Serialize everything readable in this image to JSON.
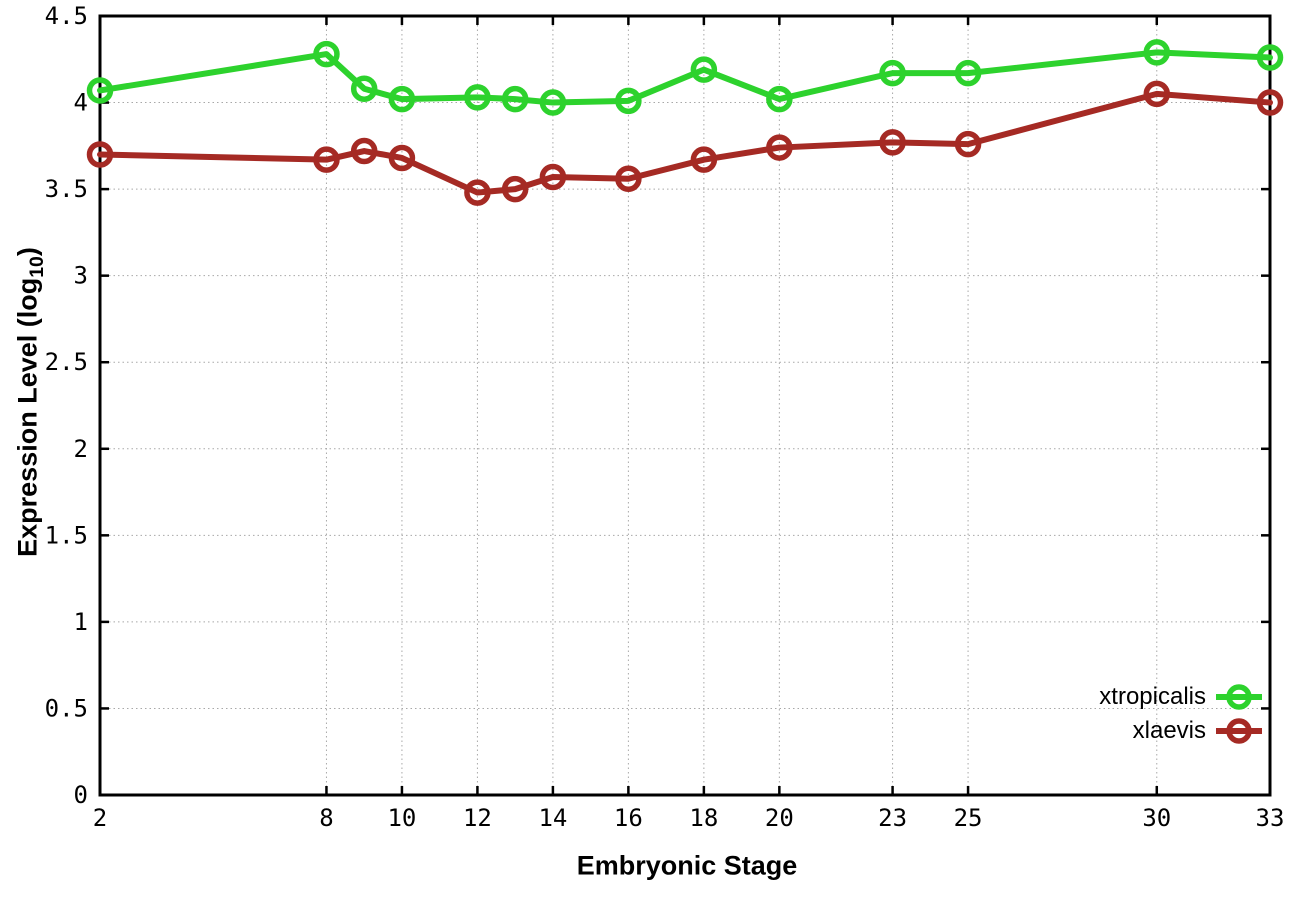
{
  "chart_data": {
    "type": "line",
    "marker": "open-circle",
    "x": [
      2,
      8,
      9,
      10,
      12,
      13,
      14,
      16,
      18,
      20,
      23,
      25,
      30,
      33
    ],
    "series": [
      {
        "name": "xtropicalis",
        "color": "#2dd22d",
        "values": [
          4.07,
          4.28,
          4.08,
          4.02,
          4.03,
          4.02,
          4.0,
          4.01,
          4.19,
          4.02,
          4.17,
          4.17,
          4.29,
          4.26
        ]
      },
      {
        "name": "xlaevis",
        "color": "#a52a24",
        "values": [
          3.7,
          3.67,
          3.72,
          3.68,
          3.48,
          3.5,
          3.57,
          3.56,
          3.67,
          3.74,
          3.77,
          3.76,
          4.05,
          4.0
        ]
      }
    ],
    "xlabel": "Embryonic Stage",
    "ylabel": "Expression Level (log10)",
    "ylabel_parts": {
      "prefix": "Expression Level (log",
      "sub": "10",
      "suffix": ")"
    },
    "xlim": [
      2,
      33
    ],
    "ylim": [
      0,
      4.5
    ],
    "x_ticks": {
      "values": [
        2,
        8,
        10,
        12,
        14,
        16,
        18,
        20,
        23,
        25,
        30,
        33
      ],
      "labels": [
        "2",
        "8",
        "10",
        "12",
        "14",
        "16",
        "18",
        "20",
        "23",
        "25",
        "30",
        "33"
      ]
    },
    "y_ticks": {
      "values": [
        0,
        0.5,
        1,
        1.5,
        2,
        2.5,
        3,
        3.5,
        4,
        4.5
      ],
      "labels": [
        "0",
        "0.5",
        "1",
        "1.5",
        "2",
        "2.5",
        "3",
        "3.5",
        "4",
        "4.5"
      ]
    },
    "grid": true,
    "grid_color": "#a8a8a8",
    "axis_color": "#000000",
    "background_color": "#ffffff",
    "legend_position": "bottom-right"
  }
}
